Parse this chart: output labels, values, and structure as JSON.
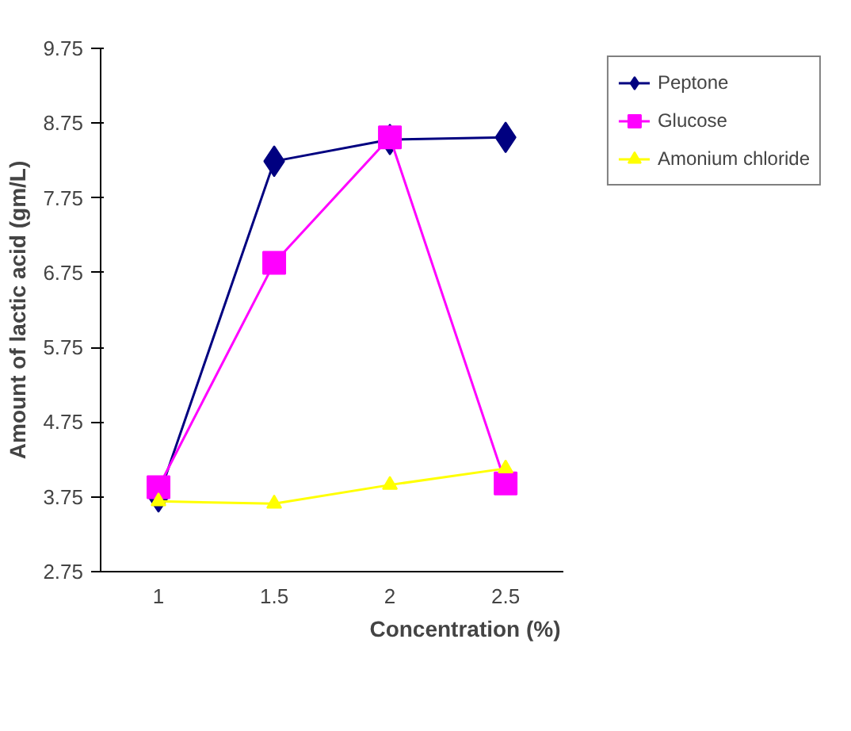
{
  "chart_data": {
    "type": "line",
    "xlabel": "Concentration (%)",
    "ylabel": "Amount of lactic acid (gm/L)",
    "categories": [
      "1",
      "1.5",
      "2",
      "2.5"
    ],
    "series": [
      {
        "name": "Peptone",
        "color": "#000080",
        "values": [
          3.75,
          8.24,
          8.53,
          8.56
        ],
        "marker": "diamond"
      },
      {
        "name": "Glucose",
        "color": "#ff00ff",
        "values": [
          3.88,
          6.88,
          8.56,
          3.93
        ],
        "marker": "square"
      },
      {
        "name": "Amonium chloride",
        "color": "#ffff00",
        "values": [
          3.69,
          3.66,
          3.91,
          4.13
        ],
        "marker": "triangle"
      }
    ],
    "ylim": [
      2.75,
      9.75
    ],
    "yticks": [
      2.75,
      3.75,
      4.75,
      5.75,
      6.75,
      7.75,
      8.75,
      9.75
    ],
    "grid": false,
    "legend": "top right",
    "line_style": "solid"
  }
}
